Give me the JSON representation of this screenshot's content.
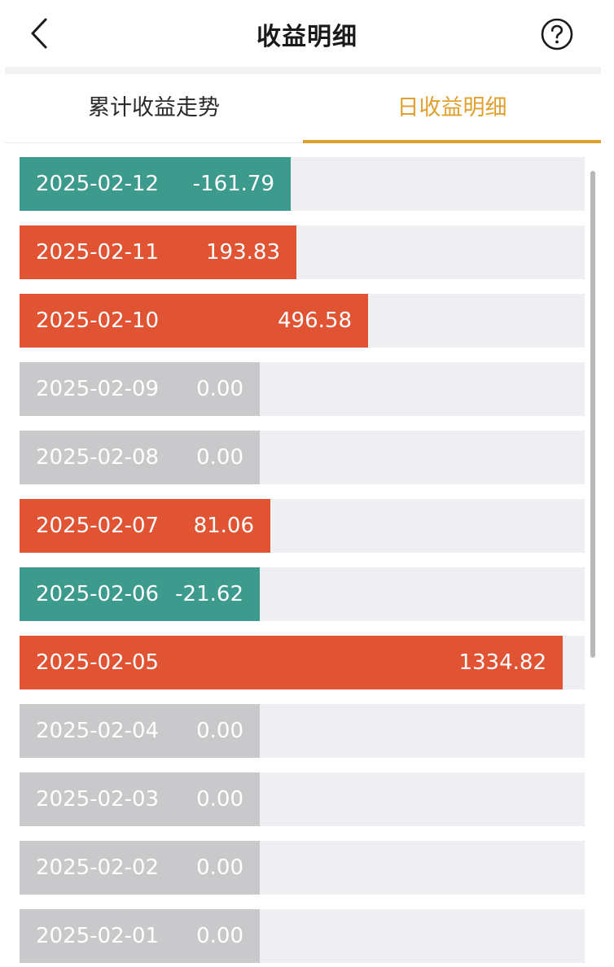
{
  "header": {
    "title": "收益明细",
    "back_icon": "chevron-left-icon",
    "help_icon": "question-circle-icon"
  },
  "tabs": [
    {
      "label": "累计收益走势",
      "active": false
    },
    {
      "label": "日收益明细",
      "active": true
    }
  ],
  "colors": {
    "positive": "#e05433",
    "negative": "#3c9b8d",
    "zero": "#c9c9cb",
    "track": "#efeff3",
    "accent": "#e0a030"
  },
  "daily_returns": [
    {
      "date": "2025-02-12",
      "value": "-161.79",
      "amount": -161.79,
      "level": 0.48
    },
    {
      "date": "2025-02-11",
      "value": "193.83",
      "amount": 193.83,
      "level": 0.49
    },
    {
      "date": "2025-02-10",
      "value": "496.58",
      "amount": 496.58,
      "level": 0.617
    },
    {
      "date": "2025-02-09",
      "value": "0.00",
      "amount": 0,
      "level": 0.425
    },
    {
      "date": "2025-02-08",
      "value": "0.00",
      "amount": 0,
      "level": 0.425
    },
    {
      "date": "2025-02-07",
      "value": "81.06",
      "amount": 81.06,
      "level": 0.444
    },
    {
      "date": "2025-02-06",
      "value": "-21.62",
      "amount": -21.62,
      "level": 0.425
    },
    {
      "date": "2025-02-05",
      "value": "1334.82",
      "amount": 1334.82,
      "level": 0.961
    },
    {
      "date": "2025-02-04",
      "value": "0.00",
      "amount": 0,
      "level": 0.425
    },
    {
      "date": "2025-02-03",
      "value": "0.00",
      "amount": 0,
      "level": 0.425
    },
    {
      "date": "2025-02-02",
      "value": "0.00",
      "amount": 0,
      "level": 0.425
    },
    {
      "date": "2025-02-01",
      "value": "0.00",
      "amount": 0,
      "level": 0.425
    }
  ]
}
